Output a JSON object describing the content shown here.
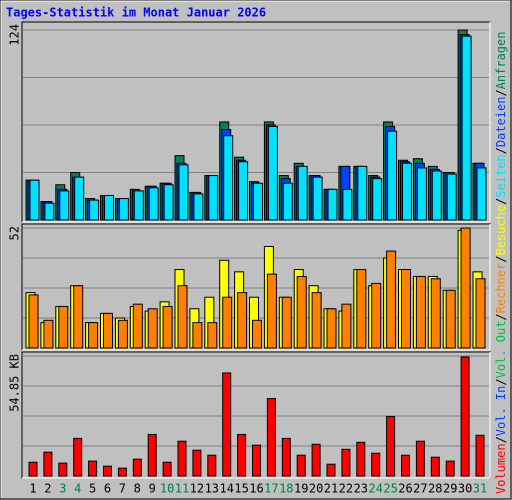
{
  "title": "Tages-Statistik im Monat Januar 2026",
  "legend_separator": "/",
  "chart_data": [
    {
      "type": "bar",
      "ylim": [
        0,
        124
      ],
      "yticks": [
        124
      ],
      "series": [
        {
          "name": "Anfragen",
          "color": "#00805c",
          "values": [
            26,
            12,
            23,
            31,
            14,
            16,
            14,
            20,
            22,
            24,
            42,
            18,
            29,
            64,
            41,
            25,
            64,
            29,
            37,
            29,
            20,
            35,
            35,
            29,
            64,
            39,
            40,
            35,
            31,
            124,
            37
          ]
        },
        {
          "name": "Dateien",
          "color": "#0040ff",
          "values": [
            26,
            12,
            20,
            28,
            13,
            16,
            14,
            19,
            22,
            24,
            37,
            18,
            29,
            59,
            39,
            24,
            62,
            27,
            35,
            29,
            20,
            35,
            35,
            28,
            61,
            38,
            37,
            33,
            31,
            121,
            37
          ]
        },
        {
          "name": "Seiten",
          "color": "#00e0ff",
          "values": [
            26,
            11,
            19,
            28,
            13,
            16,
            14,
            19,
            21,
            23,
            36,
            17,
            29,
            55,
            38,
            24,
            61,
            24,
            35,
            28,
            20,
            20,
            35,
            27,
            58,
            37,
            34,
            32,
            30,
            120,
            34
          ]
        }
      ]
    },
    {
      "type": "bar",
      "ylim": [
        0,
        52
      ],
      "yticks": [
        52
      ],
      "series": [
        {
          "name": "Besuche",
          "color": "#ffff00",
          "values": [
            24,
            11,
            18,
            27,
            11,
            15,
            13,
            18,
            16,
            20,
            34,
            17,
            22,
            38,
            33,
            22,
            44,
            22,
            34,
            27,
            17,
            16,
            34,
            27,
            39,
            34,
            31,
            31,
            25,
            51,
            33
          ]
        },
        {
          "name": "Rechner",
          "color": "#ff8000",
          "values": [
            23,
            12,
            18,
            27,
            11,
            15,
            12,
            19,
            17,
            18,
            27,
            11,
            11,
            22,
            24,
            12,
            32,
            22,
            31,
            24,
            17,
            19,
            34,
            28,
            42,
            34,
            31,
            30,
            25,
            52,
            30
          ]
        }
      ]
    },
    {
      "type": "bar",
      "ylim": [
        0,
        54.85
      ],
      "yticks": [
        {
          "value": 54.85,
          "label": "54.85 KB"
        }
      ],
      "categories": [
        "1",
        "2",
        "3",
        "4",
        "5",
        "6",
        "7",
        "8",
        "9",
        "10",
        "11",
        "12",
        "13",
        "14",
        "15",
        "16",
        "17",
        "18",
        "19",
        "20",
        "21",
        "22",
        "23",
        "24",
        "25",
        "26",
        "27",
        "28",
        "29",
        "30",
        "31"
      ],
      "category_colors": [
        "#000000",
        "#000000",
        "#008040",
        "#008040",
        "#000000",
        "#000000",
        "#000000",
        "#000000",
        "#000000",
        "#008040",
        "#008040",
        "#000000",
        "#000000",
        "#000000",
        "#000000",
        "#000000",
        "#008040",
        "#008040",
        "#000000",
        "#000000",
        "#000000",
        "#000000",
        "#000000",
        "#008040",
        "#008040",
        "#000000",
        "#000000",
        "#000000",
        "#000000",
        "#000000",
        "#008040"
      ],
      "series": [
        {
          "name": "Volumen",
          "color": "#ff0000",
          "values": [
            6.3,
            10.9,
            5.9,
            17.2,
            6.8,
            4.5,
            3.6,
            7.7,
            19.0,
            6.3,
            15.9,
            11.8,
            9.5,
            47.1,
            19.0,
            14.1,
            35.4,
            17.2,
            9.5,
            14.5,
            5.4,
            12.2,
            15.4,
            10.4,
            27.2,
            9.5,
            15.9,
            8.6,
            6.8,
            54.4,
            18.6
          ]
        }
      ],
      "legend_only": [
        {
          "name": "Vol. In",
          "color": "#0040ff"
        },
        {
          "name": "Vol. Out",
          "color": "#00c040"
        }
      ]
    }
  ]
}
